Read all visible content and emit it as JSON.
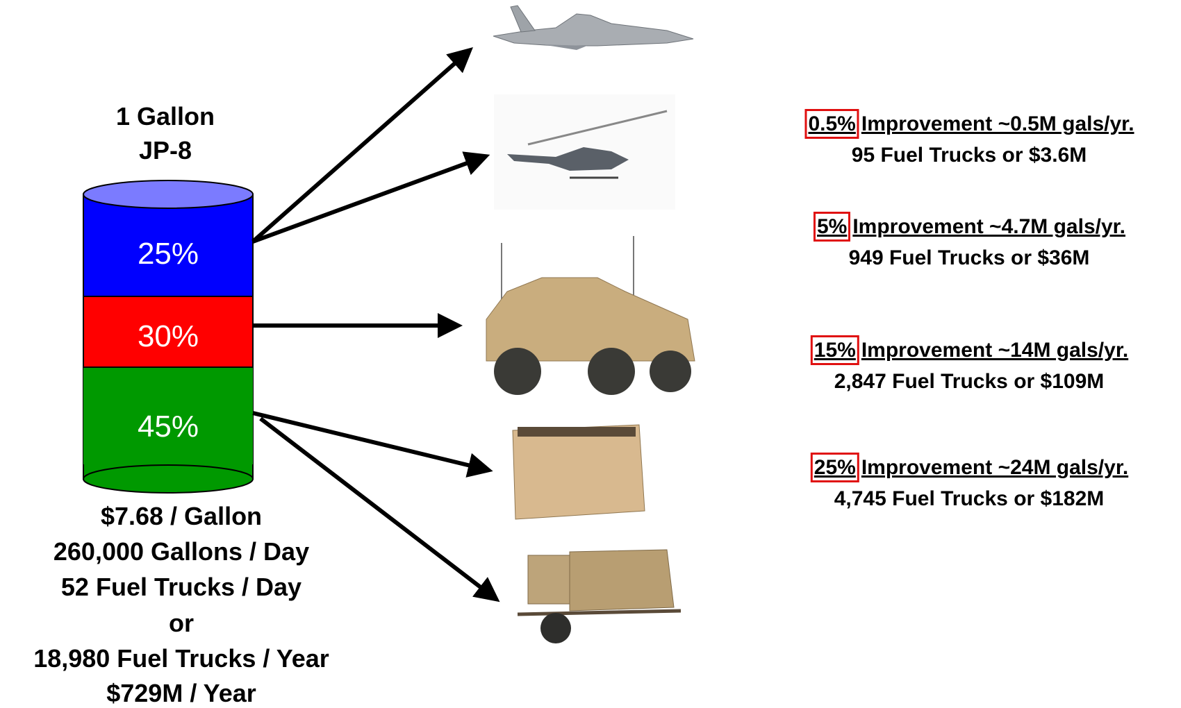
{
  "fuel": {
    "label": [
      "1 Gallon",
      "JP-8"
    ],
    "segments": [
      "25%",
      "30%",
      "45%"
    ],
    "stats": [
      "$7.68 / Gallon",
      "260,000 Gallons / Day",
      "52 Fuel Trucks / Day",
      "or",
      "18,980 Fuel Trucks / Year",
      "$729M / Year"
    ]
  },
  "improvements": [
    {
      "percent": "0.5%",
      "headline": "Improvement ~0.5M gals/yr.",
      "detail": "95 Fuel Trucks or $3.6M"
    },
    {
      "percent": "5%",
      "headline": "Improvement ~4.7M gals/yr.",
      "detail": "949 Fuel Trucks or $36M"
    },
    {
      "percent": "15%",
      "headline": "Improvement ~14M gals/yr.",
      "detail": "2,847 Fuel Trucks or $109M"
    },
    {
      "percent": "25%",
      "headline": "Improvement ~24M gals/yr.",
      "detail": "4,745 Fuel Trucks or $182M"
    }
  ]
}
